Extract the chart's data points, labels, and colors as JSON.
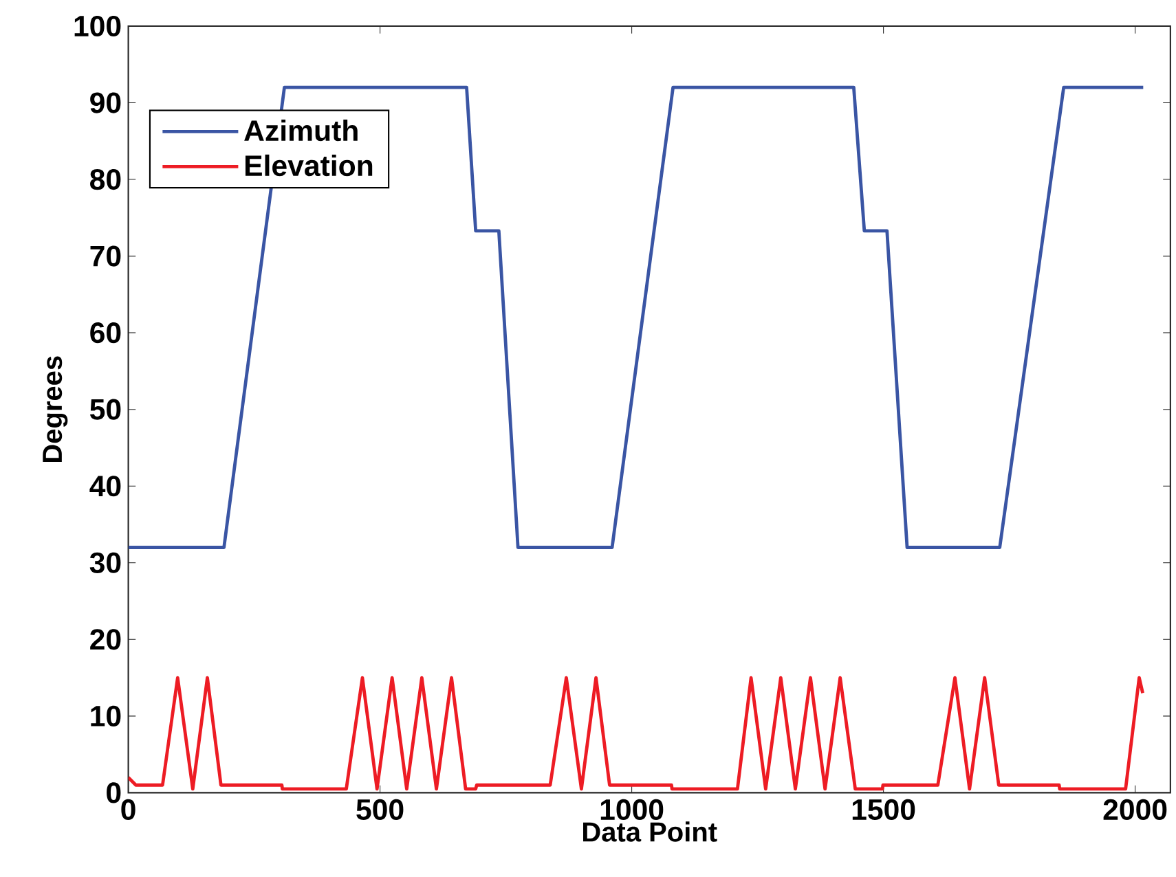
{
  "chart_data": {
    "type": "line",
    "xlabel": "Data Point",
    "ylabel": "Degrees",
    "xlim": [
      0,
      2070
    ],
    "ylim": [
      0,
      100
    ],
    "xticks": [
      0,
      500,
      1000,
      1500,
      2000
    ],
    "yticks": [
      0,
      10,
      20,
      30,
      40,
      50,
      60,
      70,
      80,
      90,
      100
    ],
    "grid": false,
    "legend": "top left",
    "marker": "none",
    "line_style": "solid",
    "series": [
      {
        "name": "Azimuth",
        "color": "#3a55a4",
        "x": [
          0,
          190,
          310,
          672,
          690,
          736,
          774,
          961,
          1082,
          1441,
          1462,
          1507,
          1547,
          1731,
          1858,
          2016
        ],
        "values": [
          32,
          32,
          92,
          92,
          73.3,
          73.3,
          32,
          32,
          92,
          92,
          73.3,
          73.3,
          32,
          32,
          92,
          92
        ]
      },
      {
        "name": "Elevation",
        "color": "#ed1c24",
        "x": [
          0,
          15,
          68,
          98,
          128,
          157,
          184,
          305,
          306,
          433,
          465,
          494,
          524,
          553,
          583,
          612,
          642,
          670,
          690,
          692,
          729,
          730,
          838,
          870,
          900,
          929,
          956,
          1079,
          1080,
          1210,
          1237,
          1266,
          1296,
          1325,
          1355,
          1384,
          1414,
          1444,
          1498,
          1499,
          1608,
          1642,
          1671,
          1701,
          1729,
          1849,
          1850,
          1981,
          2008,
          2015
        ],
        "values": [
          2,
          1,
          1,
          15,
          0.5,
          15,
          1,
          1,
          0.5,
          0.5,
          15,
          0.5,
          15,
          0.5,
          15,
          0.5,
          15,
          0.5,
          0.5,
          1,
          1,
          1,
          1,
          15,
          0.5,
          15,
          1,
          1,
          0.5,
          0.5,
          15,
          0.5,
          15,
          0.5,
          15,
          0.5,
          15,
          0.5,
          0.5,
          1,
          1,
          15,
          0.5,
          15,
          1,
          1,
          0.5,
          0.5,
          15,
          13
        ]
      }
    ]
  }
}
